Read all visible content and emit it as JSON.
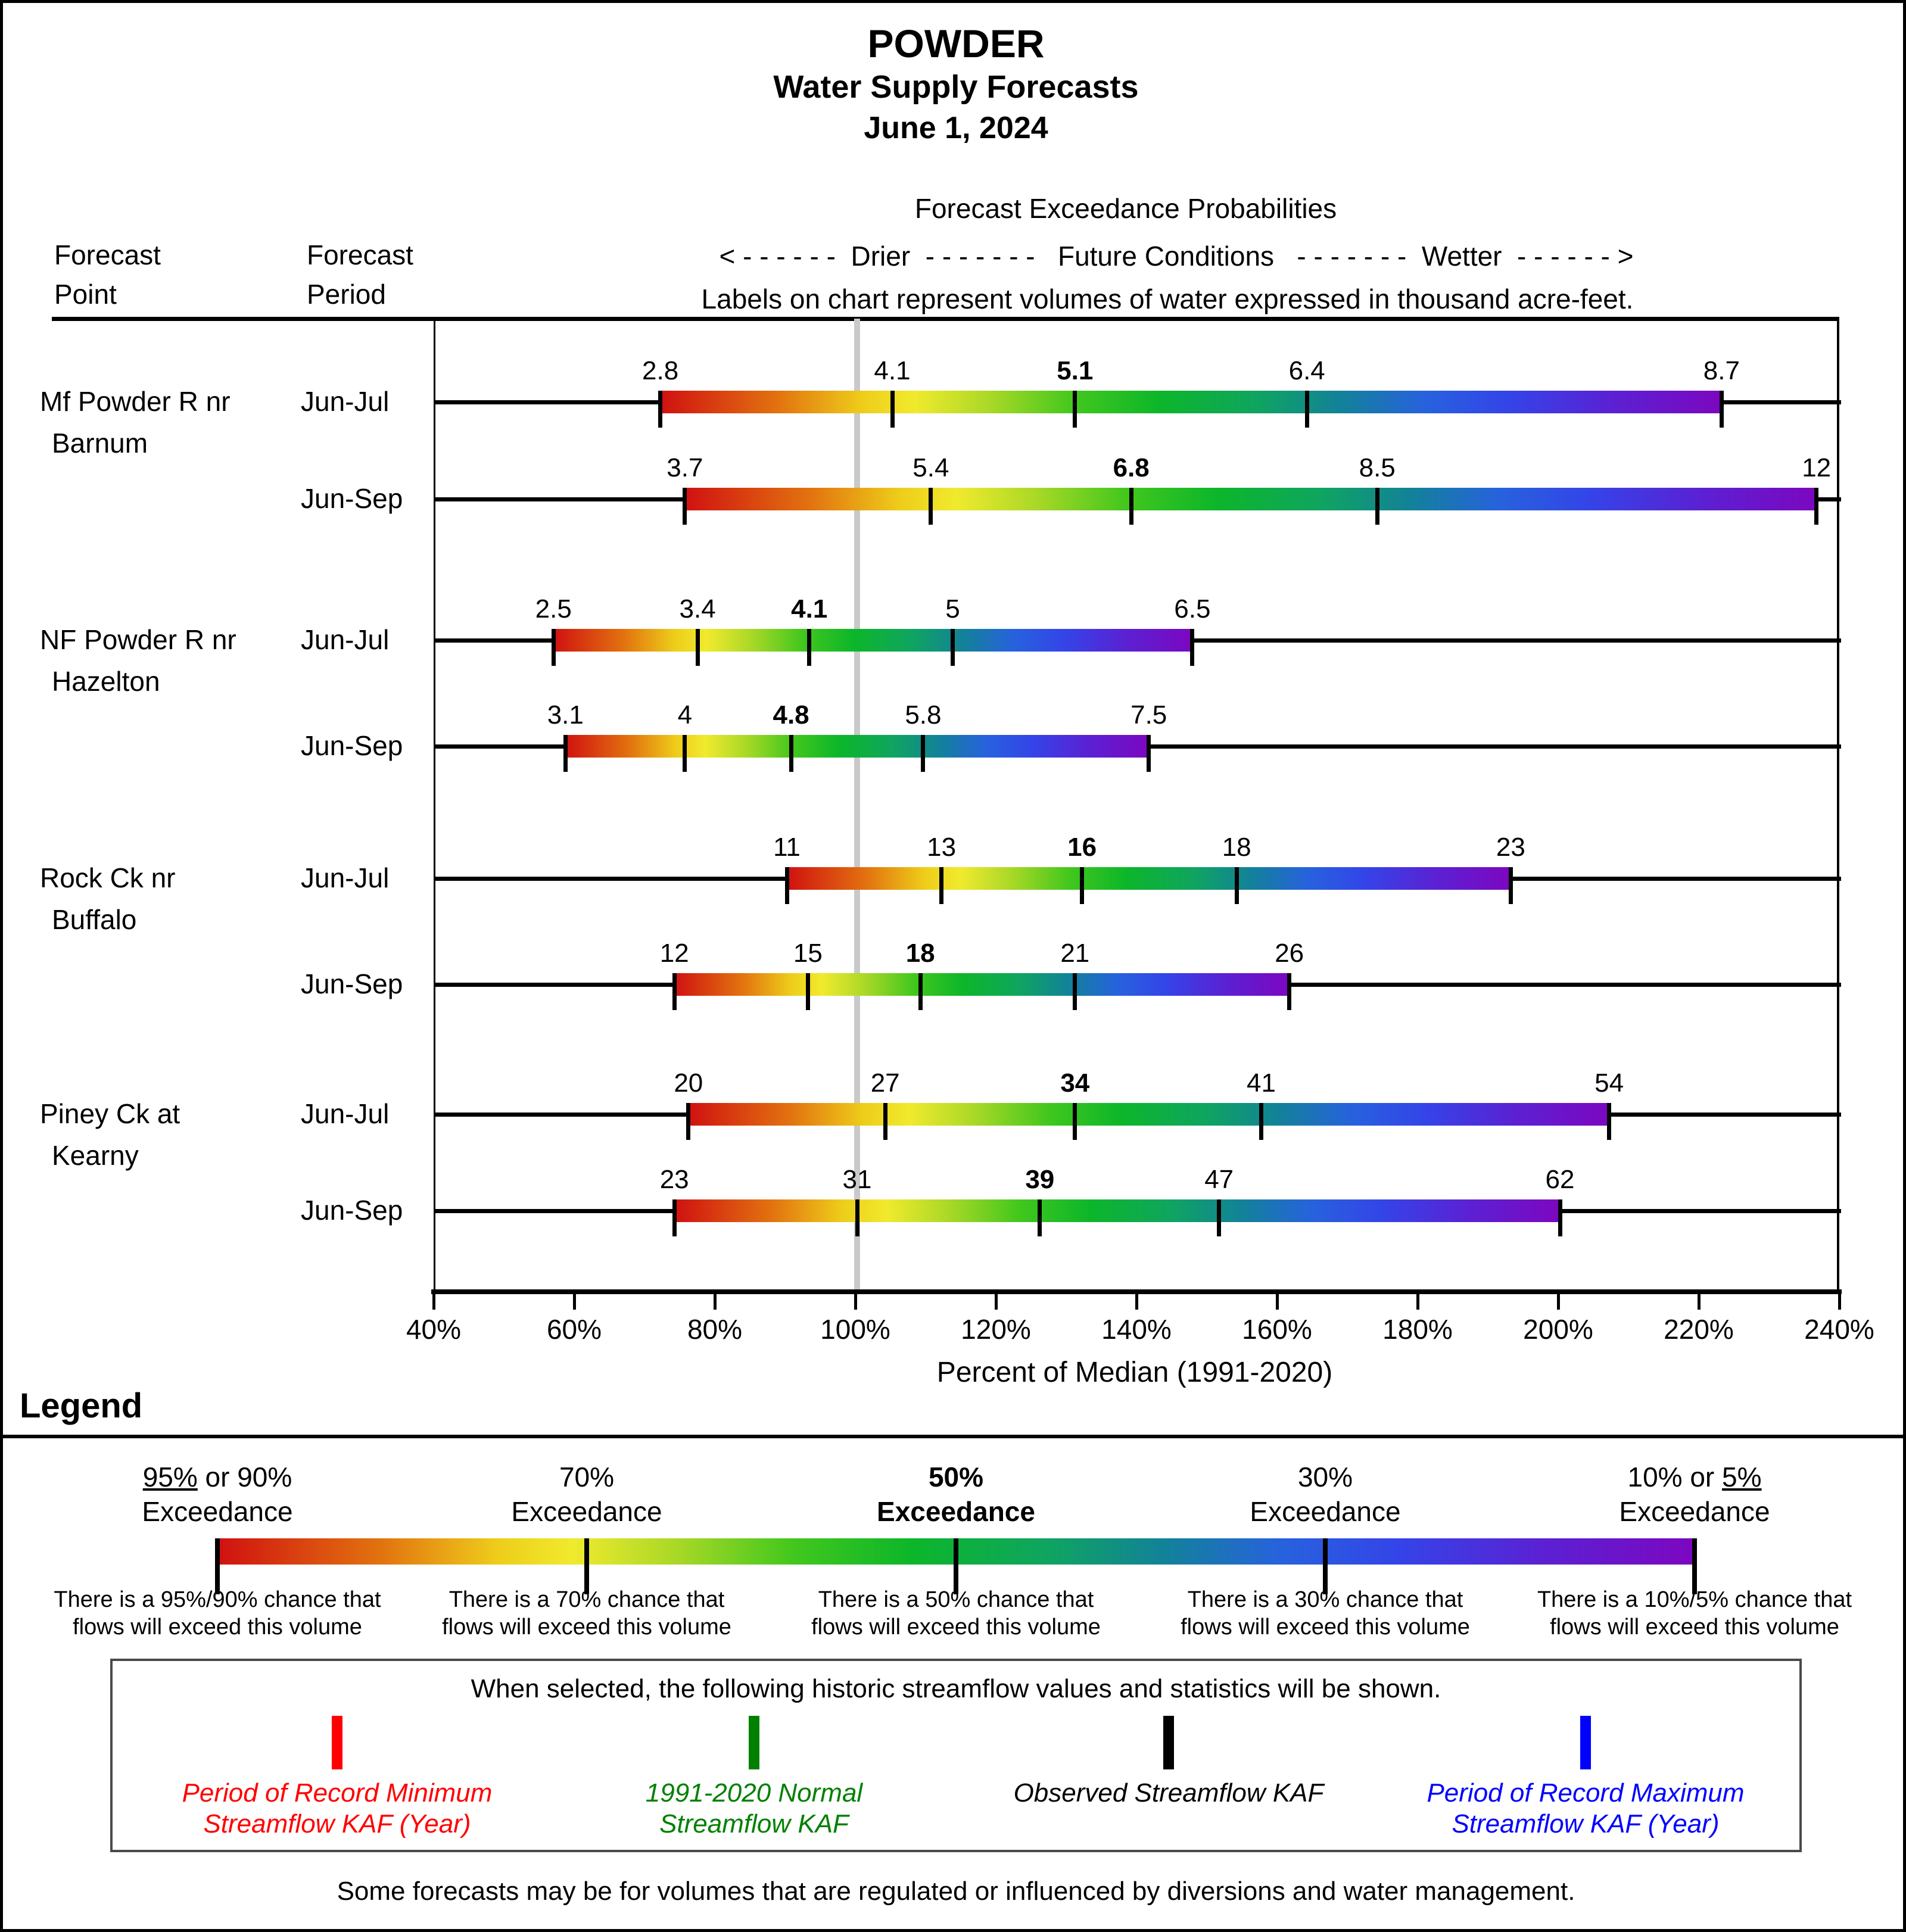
{
  "title": {
    "line1": "POWDER",
    "line2": "Water Supply Forecasts",
    "line3": "June 1, 2024"
  },
  "header": {
    "col1_line1": "Forecast",
    "col1_line2": "Point",
    "col2_line1": "Forecast",
    "col2_line2": "Period",
    "center_title": "Forecast Exceedance Probabilities",
    "direction_line": "< - - - - - -  Drier  - - - - - - -   Future Conditions   - - - - - - -  Wetter  - - - - - - >",
    "units_note": "Labels on chart represent volumes of water expressed in thousand acre-feet."
  },
  "chart_data": {
    "type": "bar",
    "subtype": "horizontal-exceedance-range-bars",
    "title": "Forecast Exceedance Probabilities",
    "xlabel": "Percent of Median (1991-2020)",
    "xlim": [
      40,
      240
    ],
    "x_tick_values": [
      40,
      60,
      80,
      100,
      120,
      140,
      160,
      180,
      200,
      220,
      240
    ],
    "x_tick_labels": [
      "40%",
      "60%",
      "80%",
      "100%",
      "120%",
      "140%",
      "160%",
      "180%",
      "200%",
      "220%",
      "240%"
    ],
    "median_reference_pct": 100,
    "units": "thousand acre-feet",
    "exceedance_levels": [
      "95% or 90%",
      "70%",
      "50%",
      "30%",
      "10% or 5%"
    ],
    "bold_value_index": 2,
    "groups": [
      {
        "station_lines": [
          "Mf Powder R nr",
          "Barnum"
        ],
        "rows": [
          {
            "period": "Jun-Jul",
            "values": [
              2.8,
              4.1,
              5.1,
              6.4,
              8.7
            ],
            "pct": [
              72,
              105,
              131,
              164,
              223
            ]
          },
          {
            "period": "Jun-Sep",
            "values": [
              3.7,
              5.4,
              6.8,
              8.5,
              12
            ],
            "pct": [
              75.5,
              110.5,
              139,
              174,
              236.5
            ]
          }
        ]
      },
      {
        "station_lines": [
          "NF Powder R nr",
          "Hazelton"
        ],
        "rows": [
          {
            "period": "Jun-Jul",
            "values": [
              2.5,
              3.4,
              4.1,
              5,
              6.5
            ],
            "pct": [
              56.8,
              77.3,
              93.2,
              113.6,
              147.7
            ]
          },
          {
            "period": "Jun-Sep",
            "values": [
              3.1,
              4,
              4.8,
              5.8,
              7.5
            ],
            "pct": [
              58.5,
              75.5,
              90.6,
              109.4,
              141.5
            ]
          }
        ]
      },
      {
        "station_lines": [
          "Rock Ck nr",
          "Buffalo"
        ],
        "rows": [
          {
            "period": "Jun-Jul",
            "values": [
              11,
              13,
              16,
              18,
              23
            ],
            "pct": [
              90,
              112,
              132,
              154,
              193
            ]
          },
          {
            "period": "Jun-Sep",
            "values": [
              12,
              15,
              18,
              21,
              26
            ],
            "pct": [
              74,
              93,
              109,
              131,
              161.5
            ]
          }
        ]
      },
      {
        "station_lines": [
          "Piney Ck at",
          "Kearny"
        ],
        "rows": [
          {
            "period": "Jun-Jul",
            "values": [
              20,
              27,
              34,
              41,
              54
            ],
            "pct": [
              76,
              104,
              131,
              157.5,
              207
            ]
          },
          {
            "period": "Jun-Sep",
            "values": [
              23,
              31,
              39,
              47,
              62
            ],
            "pct": [
              74,
              100,
              126,
              151.5,
              200
            ]
          }
        ]
      }
    ],
    "gradient_colors": [
      "#d01111",
      "#e2720f",
      "#eecd1a",
      "#f0ea2d",
      "#aad827",
      "#42c71d",
      "#0cb62a",
      "#0fa55f",
      "#128298",
      "#2762dd",
      "#3444e8",
      "#5c20d2",
      "#7c07c0"
    ],
    "median_line_color": "#c9c9c9"
  },
  "axis": {
    "title": "Percent of Median (1991-2020)"
  },
  "legend": {
    "heading": "Legend",
    "columns": [
      {
        "t_before": "",
        "t_underline": "95%",
        "t_after": " or 90%",
        "t_line2": "Exceedance",
        "bold": false,
        "caption_line1": "There is a 95%/90% chance that",
        "caption_line2": "flows will exceed this volume"
      },
      {
        "t_before": "70%",
        "t_underline": "",
        "t_after": "",
        "t_line2": "Exceedance",
        "bold": false,
        "caption_line1": "There is a 70% chance that",
        "caption_line2": "flows will exceed this volume"
      },
      {
        "t_before": "50%",
        "t_underline": "",
        "t_after": "",
        "t_line2": "Exceedance",
        "bold": true,
        "caption_line1": "There is a 50% chance that",
        "caption_line2": "flows will exceed this volume"
      },
      {
        "t_before": "30%",
        "t_underline": "",
        "t_after": "",
        "t_line2": "Exceedance",
        "bold": false,
        "caption_line1": "There is a 30% chance that",
        "caption_line2": "flows will exceed this volume"
      },
      {
        "t_before": "10% or ",
        "t_underline": "5%",
        "t_after": "",
        "t_line2": "Exceedance",
        "bold": false,
        "caption_line1": "There is a 10%/5% chance that",
        "caption_line2": "flows will exceed this volume"
      }
    ]
  },
  "historic_box": {
    "title": "When selected, the following historic streamflow values and statistics will be shown.",
    "items": [
      {
        "color": "#ff0000",
        "label_line1": "Period of Record Minimum",
        "label_line2": "Streamflow KAF (Year)"
      },
      {
        "color": "#008000",
        "label_line1": "1991-2020 Normal",
        "label_line2": "Streamflow KAF"
      },
      {
        "color": "#000000",
        "label_line1": "Observed Streamflow KAF",
        "label_line2": ""
      },
      {
        "color": "#0000ff",
        "label_line1": "Period of Record Maximum",
        "label_line2": "Streamflow KAF (Year)"
      }
    ]
  },
  "footnote": "Some forecasts may be for volumes that are regulated or influenced by diversions and water management."
}
